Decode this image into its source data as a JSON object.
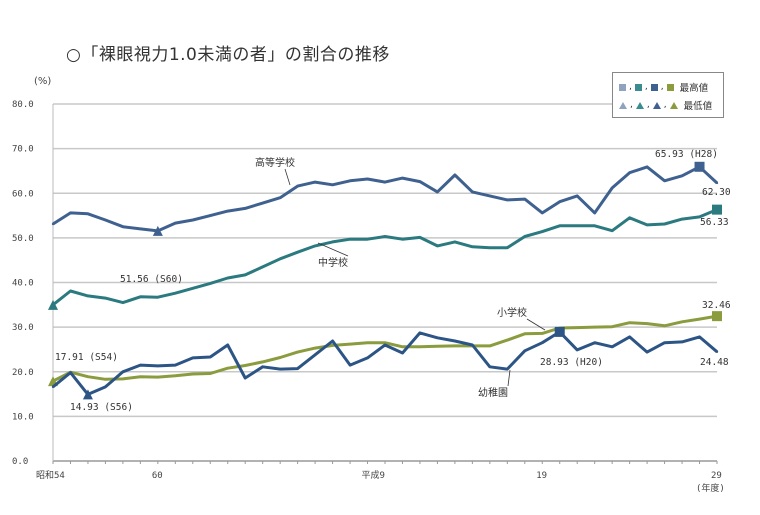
{
  "chart_data": {
    "type": "line",
    "title": "○「裸眼視力1.0未満の者」の割合の推移",
    "ylabel": "(%)",
    "xlabel": "(年度)",
    "ylim": [
      0,
      80
    ],
    "yticks": [
      "0.0",
      "10.0",
      "20.0",
      "30.0",
      "40.0",
      "50.0",
      "60.0",
      "70.0",
      "80.0"
    ],
    "xtick_labels": [
      {
        "index": 0,
        "label": "昭和54"
      },
      {
        "index": 6,
        "label": "60"
      },
      {
        "index": 18,
        "label": "平成9"
      },
      {
        "index": 28,
        "label": "19"
      },
      {
        "index": 38,
        "label": "29"
      }
    ],
    "x": [
      "S54",
      "S55",
      "S56",
      "S57",
      "S58",
      "S59",
      "S60",
      "S61",
      "S62",
      "S63",
      "H1",
      "H2",
      "H3",
      "H4",
      "H5",
      "H6",
      "H7",
      "H8",
      "H9",
      "H10",
      "H11",
      "H12",
      "H13",
      "H14",
      "H15",
      "H16",
      "H17",
      "H18",
      "H19",
      "H20",
      "H21",
      "H22",
      "H23",
      "H24",
      "H25",
      "H26",
      "H27",
      "H28",
      "H29"
    ],
    "grid": true,
    "series": [
      {
        "name": "高等学校",
        "color": "#3f6190",
        "max_index": 37,
        "min_index": 6,
        "values": [
          53.1,
          55.6,
          55.4,
          54.0,
          52.5,
          52.0,
          51.56,
          53.3,
          54.0,
          55.0,
          56.0,
          56.6,
          57.8,
          59.0,
          61.6,
          62.5,
          61.9,
          62.8,
          63.2,
          62.5,
          63.4,
          62.6,
          60.3,
          64.1,
          60.3,
          59.4,
          58.5,
          58.7,
          55.6,
          58.1,
          59.4,
          55.6,
          61.2,
          64.6,
          65.9,
          62.8,
          63.9,
          65.93,
          62.3
        ]
      },
      {
        "name": "中学校",
        "color": "#2b7a80",
        "max_index": 38,
        "min_index": 0,
        "values": [
          35.0,
          38.1,
          37.0,
          36.5,
          35.5,
          36.8,
          36.7,
          37.6,
          38.7,
          39.8,
          41.0,
          41.7,
          43.5,
          45.3,
          46.8,
          48.2,
          49.1,
          49.7,
          49.7,
          50.3,
          49.7,
          50.1,
          48.2,
          49.1,
          48.0,
          47.8,
          47.8,
          50.3,
          51.4,
          52.7,
          52.7,
          52.7,
          51.6,
          54.5,
          52.9,
          53.1,
          54.2,
          54.7,
          56.33
        ]
      },
      {
        "name": "小学校",
        "color": "#8a9c3e",
        "max_index": 38,
        "min_index": 0,
        "values": [
          17.91,
          19.9,
          18.9,
          18.3,
          18.4,
          18.9,
          18.8,
          19.1,
          19.5,
          19.6,
          20.8,
          21.4,
          22.2,
          23.2,
          24.4,
          25.3,
          25.9,
          26.2,
          26.5,
          26.5,
          25.6,
          25.6,
          25.7,
          25.8,
          25.8,
          25.8,
          27.1,
          28.5,
          28.6,
          29.8,
          29.9,
          30.0,
          30.1,
          31.0,
          30.8,
          30.3,
          31.2,
          31.8,
          32.46
        ]
      },
      {
        "name": "幼稚園",
        "color": "#2c5586",
        "max_index": 29,
        "min_index": 2,
        "values": [
          16.6,
          19.8,
          14.93,
          16.6,
          20.0,
          21.5,
          21.3,
          21.5,
          23.1,
          23.3,
          26.0,
          18.6,
          21.1,
          20.6,
          20.7,
          23.8,
          26.9,
          21.5,
          23.1,
          26.0,
          24.2,
          28.7,
          27.6,
          26.9,
          26.0,
          21.1,
          20.6,
          24.7,
          26.5,
          28.93,
          24.9,
          26.5,
          25.6,
          27.8,
          24.4,
          26.5,
          26.7,
          27.8,
          24.48
        ]
      }
    ],
    "annotations": [
      "51.56 (S60)",
      "65.93 (H28)",
      "62.30",
      "56.33",
      "32.46",
      "28.93 (H20)",
      "24.48",
      "17.91 (S54)",
      "14.93 (S56)"
    ],
    "legend": {
      "placement": "top-right",
      "max_label": "最高値",
      "min_label": "最低値",
      "colors": [
        "#8fa3bf",
        "#3a8c8e",
        "#3f6190",
        "#8a9c3e"
      ]
    }
  }
}
